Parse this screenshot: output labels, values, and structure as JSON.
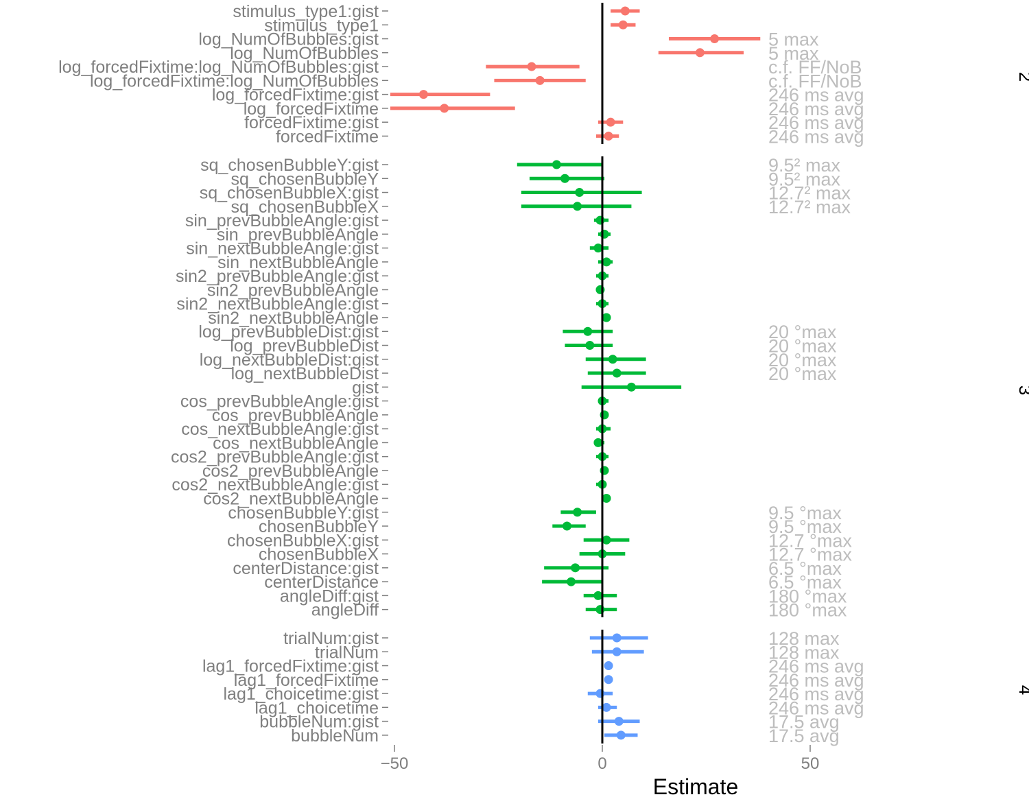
{
  "chart_data": {
    "type": "forest",
    "xlabel": "Estimate",
    "xlim": [
      -100,
      100
    ],
    "xticks": [
      -50,
      0,
      50
    ],
    "xtick_labels": [
      "−50",
      "0",
      "50"
    ],
    "reference_line": 0,
    "grid": false,
    "colors": {
      "2": "#f8766d",
      "3": "#00ba38",
      "4": "#619cff",
      "ref_line": "#000000",
      "annotation": "#bdbdbd"
    },
    "panels": [
      {
        "facet": "2",
        "rows": [
          {
            "term": "stimulus_type1:gist",
            "est": 5.5,
            "lo": 2,
            "hi": 9,
            "note": ""
          },
          {
            "term": "stimulus_type1",
            "est": 5,
            "lo": 2,
            "hi": 8,
            "note": ""
          },
          {
            "term": "log_NumOfBubbles:gist",
            "est": 27,
            "lo": 16,
            "hi": 38,
            "note": "5 max"
          },
          {
            "term": "log_NumOfBubbles",
            "est": 23.5,
            "lo": 13.5,
            "hi": 34,
            "note": "5 max"
          },
          {
            "term": "log_forcedFixtime:log_NumOfBubbles:gist",
            "est": -17,
            "lo": -28,
            "hi": -5.5,
            "note": "c.f. FF/NoB"
          },
          {
            "term": "log_forcedFixtime:log_NumOfBubbles",
            "est": -15,
            "lo": -26,
            "hi": -4,
            "note": "c.f. FF/NoB"
          },
          {
            "term": "log_forcedFixtime:gist",
            "est": -43,
            "lo": -51,
            "hi": -27,
            "note": "246 ms avg"
          },
          {
            "term": "log_forcedFixtime",
            "est": -38,
            "lo": -51,
            "hi": -21,
            "note": "246 ms avg"
          },
          {
            "term": "forcedFixtime:gist",
            "est": 2,
            "lo": -1,
            "hi": 5,
            "note": "246 ms avg"
          },
          {
            "term": "forcedFixtime",
            "est": 1.5,
            "lo": -1.5,
            "hi": 4,
            "note": "246 ms avg"
          }
        ]
      },
      {
        "facet": "3",
        "rows": [
          {
            "term": "sq_chosenBubbleY:gist",
            "est": -11,
            "lo": -20.5,
            "hi": 0,
            "note": "9.5² max"
          },
          {
            "term": "sq_chosenBubbleY",
            "est": -9,
            "lo": -17.5,
            "hi": 0.5,
            "note": "9.5² max"
          },
          {
            "term": "sq_chosenBubbleX:gist",
            "est": -5.5,
            "lo": -19.5,
            "hi": 9.5,
            "note": "12.7² max"
          },
          {
            "term": "sq_chosenBubbleX",
            "est": -6,
            "lo": -19.5,
            "hi": 7,
            "note": "12.7² max"
          },
          {
            "term": "sin_prevBubbleAngle:gist",
            "est": -0.5,
            "lo": -2,
            "hi": 1.5,
            "note": ""
          },
          {
            "term": "sin_prevBubbleAngle",
            "est": 0.5,
            "lo": -1,
            "hi": 2,
            "note": ""
          },
          {
            "term": "sin_nextBubbleAngle:gist",
            "est": -1,
            "lo": -3,
            "hi": 1.5,
            "note": ""
          },
          {
            "term": "sin_nextBubbleAngle",
            "est": 1,
            "lo": -1,
            "hi": 2.5,
            "note": ""
          },
          {
            "term": "sin2_prevBubbleAngle:gist",
            "est": 0,
            "lo": -1.5,
            "hi": 1.5,
            "note": ""
          },
          {
            "term": "sin2_prevBubbleAngle",
            "est": -0.5,
            "lo": -1.5,
            "hi": 0.5,
            "note": ""
          },
          {
            "term": "sin2_nextBubbleAngle:gist",
            "est": 0,
            "lo": -1.5,
            "hi": 1.5,
            "note": ""
          },
          {
            "term": "sin2_nextBubbleAngle",
            "est": 1,
            "lo": 0,
            "hi": 2,
            "note": ""
          },
          {
            "term": "log_prevBubbleDist:gist",
            "est": -3.5,
            "lo": -9.5,
            "hi": 2.5,
            "note": "20 °max"
          },
          {
            "term": "log_prevBubbleDist",
            "est": -3,
            "lo": -9,
            "hi": 2.5,
            "note": "20 °max"
          },
          {
            "term": "log_nextBubbleDist:gist",
            "est": 2.5,
            "lo": -4,
            "hi": 10.5,
            "note": "20 °max"
          },
          {
            "term": "log_nextBubbleDist",
            "est": 3.5,
            "lo": -3.5,
            "hi": 10.5,
            "note": "20 °max"
          },
          {
            "term": "gist",
            "est": 7,
            "lo": -5,
            "hi": 19,
            "note": ""
          },
          {
            "term": "cos_prevBubbleAngle:gist",
            "est": 0,
            "lo": -1,
            "hi": 1.5,
            "note": ""
          },
          {
            "term": "cos_prevBubbleAngle",
            "est": 0.5,
            "lo": -0.5,
            "hi": 1.5,
            "note": ""
          },
          {
            "term": "cos_nextBubbleAngle:gist",
            "est": 0,
            "lo": -1.5,
            "hi": 2,
            "note": ""
          },
          {
            "term": "cos_nextBubbleAngle",
            "est": -1,
            "lo": -2,
            "hi": 0.5,
            "note": ""
          },
          {
            "term": "cos2_prevBubbleAngle:gist",
            "est": 0,
            "lo": -1.5,
            "hi": 1.5,
            "note": ""
          },
          {
            "term": "cos2_prevBubbleAngle",
            "est": 0.5,
            "lo": -0.5,
            "hi": 1.5,
            "note": ""
          },
          {
            "term": "cos2_nextBubbleAngle:gist",
            "est": 0,
            "lo": -1.5,
            "hi": 1,
            "note": ""
          },
          {
            "term": "cos2_nextBubbleAngle",
            "est": 1,
            "lo": 0,
            "hi": 2,
            "note": ""
          },
          {
            "term": "chosenBubbleY:gist",
            "est": -6,
            "lo": -10,
            "hi": -1.5,
            "note": "9.5 °max"
          },
          {
            "term": "chosenBubbleY",
            "est": -8.5,
            "lo": -12,
            "hi": -4,
            "note": "9.5 °max"
          },
          {
            "term": "chosenBubbleX:gist",
            "est": 1,
            "lo": -4.5,
            "hi": 6.5,
            "note": "12.7 °max"
          },
          {
            "term": "chosenBubbleX",
            "est": 0,
            "lo": -5.5,
            "hi": 5.5,
            "note": "12.7 °max"
          },
          {
            "term": "centerDistance:gist",
            "est": -6.5,
            "lo": -14,
            "hi": 1.5,
            "note": "6.5 °max"
          },
          {
            "term": "centerDistance",
            "est": -7.5,
            "lo": -14.5,
            "hi": 0,
            "note": "6.5 °max"
          },
          {
            "term": "angleDiff:gist",
            "est": -1,
            "lo": -4.5,
            "hi": 3.5,
            "note": "180 °max"
          },
          {
            "term": "angleDiff",
            "est": -0.5,
            "lo": -4,
            "hi": 3.5,
            "note": "180 °max"
          }
        ]
      },
      {
        "facet": "4",
        "rows": [
          {
            "term": "trialNum:gist",
            "est": 3.5,
            "lo": -3,
            "hi": 11,
            "note": "128 max"
          },
          {
            "term": "trialNum",
            "est": 3.5,
            "lo": -2.5,
            "hi": 10,
            "note": "128 max"
          },
          {
            "term": "lag1_forcedFixtime:gist",
            "est": 1.5,
            "lo": 0.5,
            "hi": 2,
            "note": "246 ms avg"
          },
          {
            "term": "lag1_forcedFixtime",
            "est": 1.5,
            "lo": 0.5,
            "hi": 2,
            "note": "246 ms avg"
          },
          {
            "term": "lag1_choicetime:gist",
            "est": -0.5,
            "lo": -3.5,
            "hi": 2.5,
            "note": "246 ms avg"
          },
          {
            "term": "lag1_choicetime",
            "est": 1,
            "lo": -1,
            "hi": 3.5,
            "note": "246 ms avg"
          },
          {
            "term": "bubbleNum:gist",
            "est": 4,
            "lo": -1,
            "hi": 9,
            "note": "17.5 avg"
          },
          {
            "term": "bubbleNum",
            "est": 4.5,
            "lo": 0.5,
            "hi": 8.5,
            "note": "17.5 avg"
          }
        ]
      }
    ]
  }
}
